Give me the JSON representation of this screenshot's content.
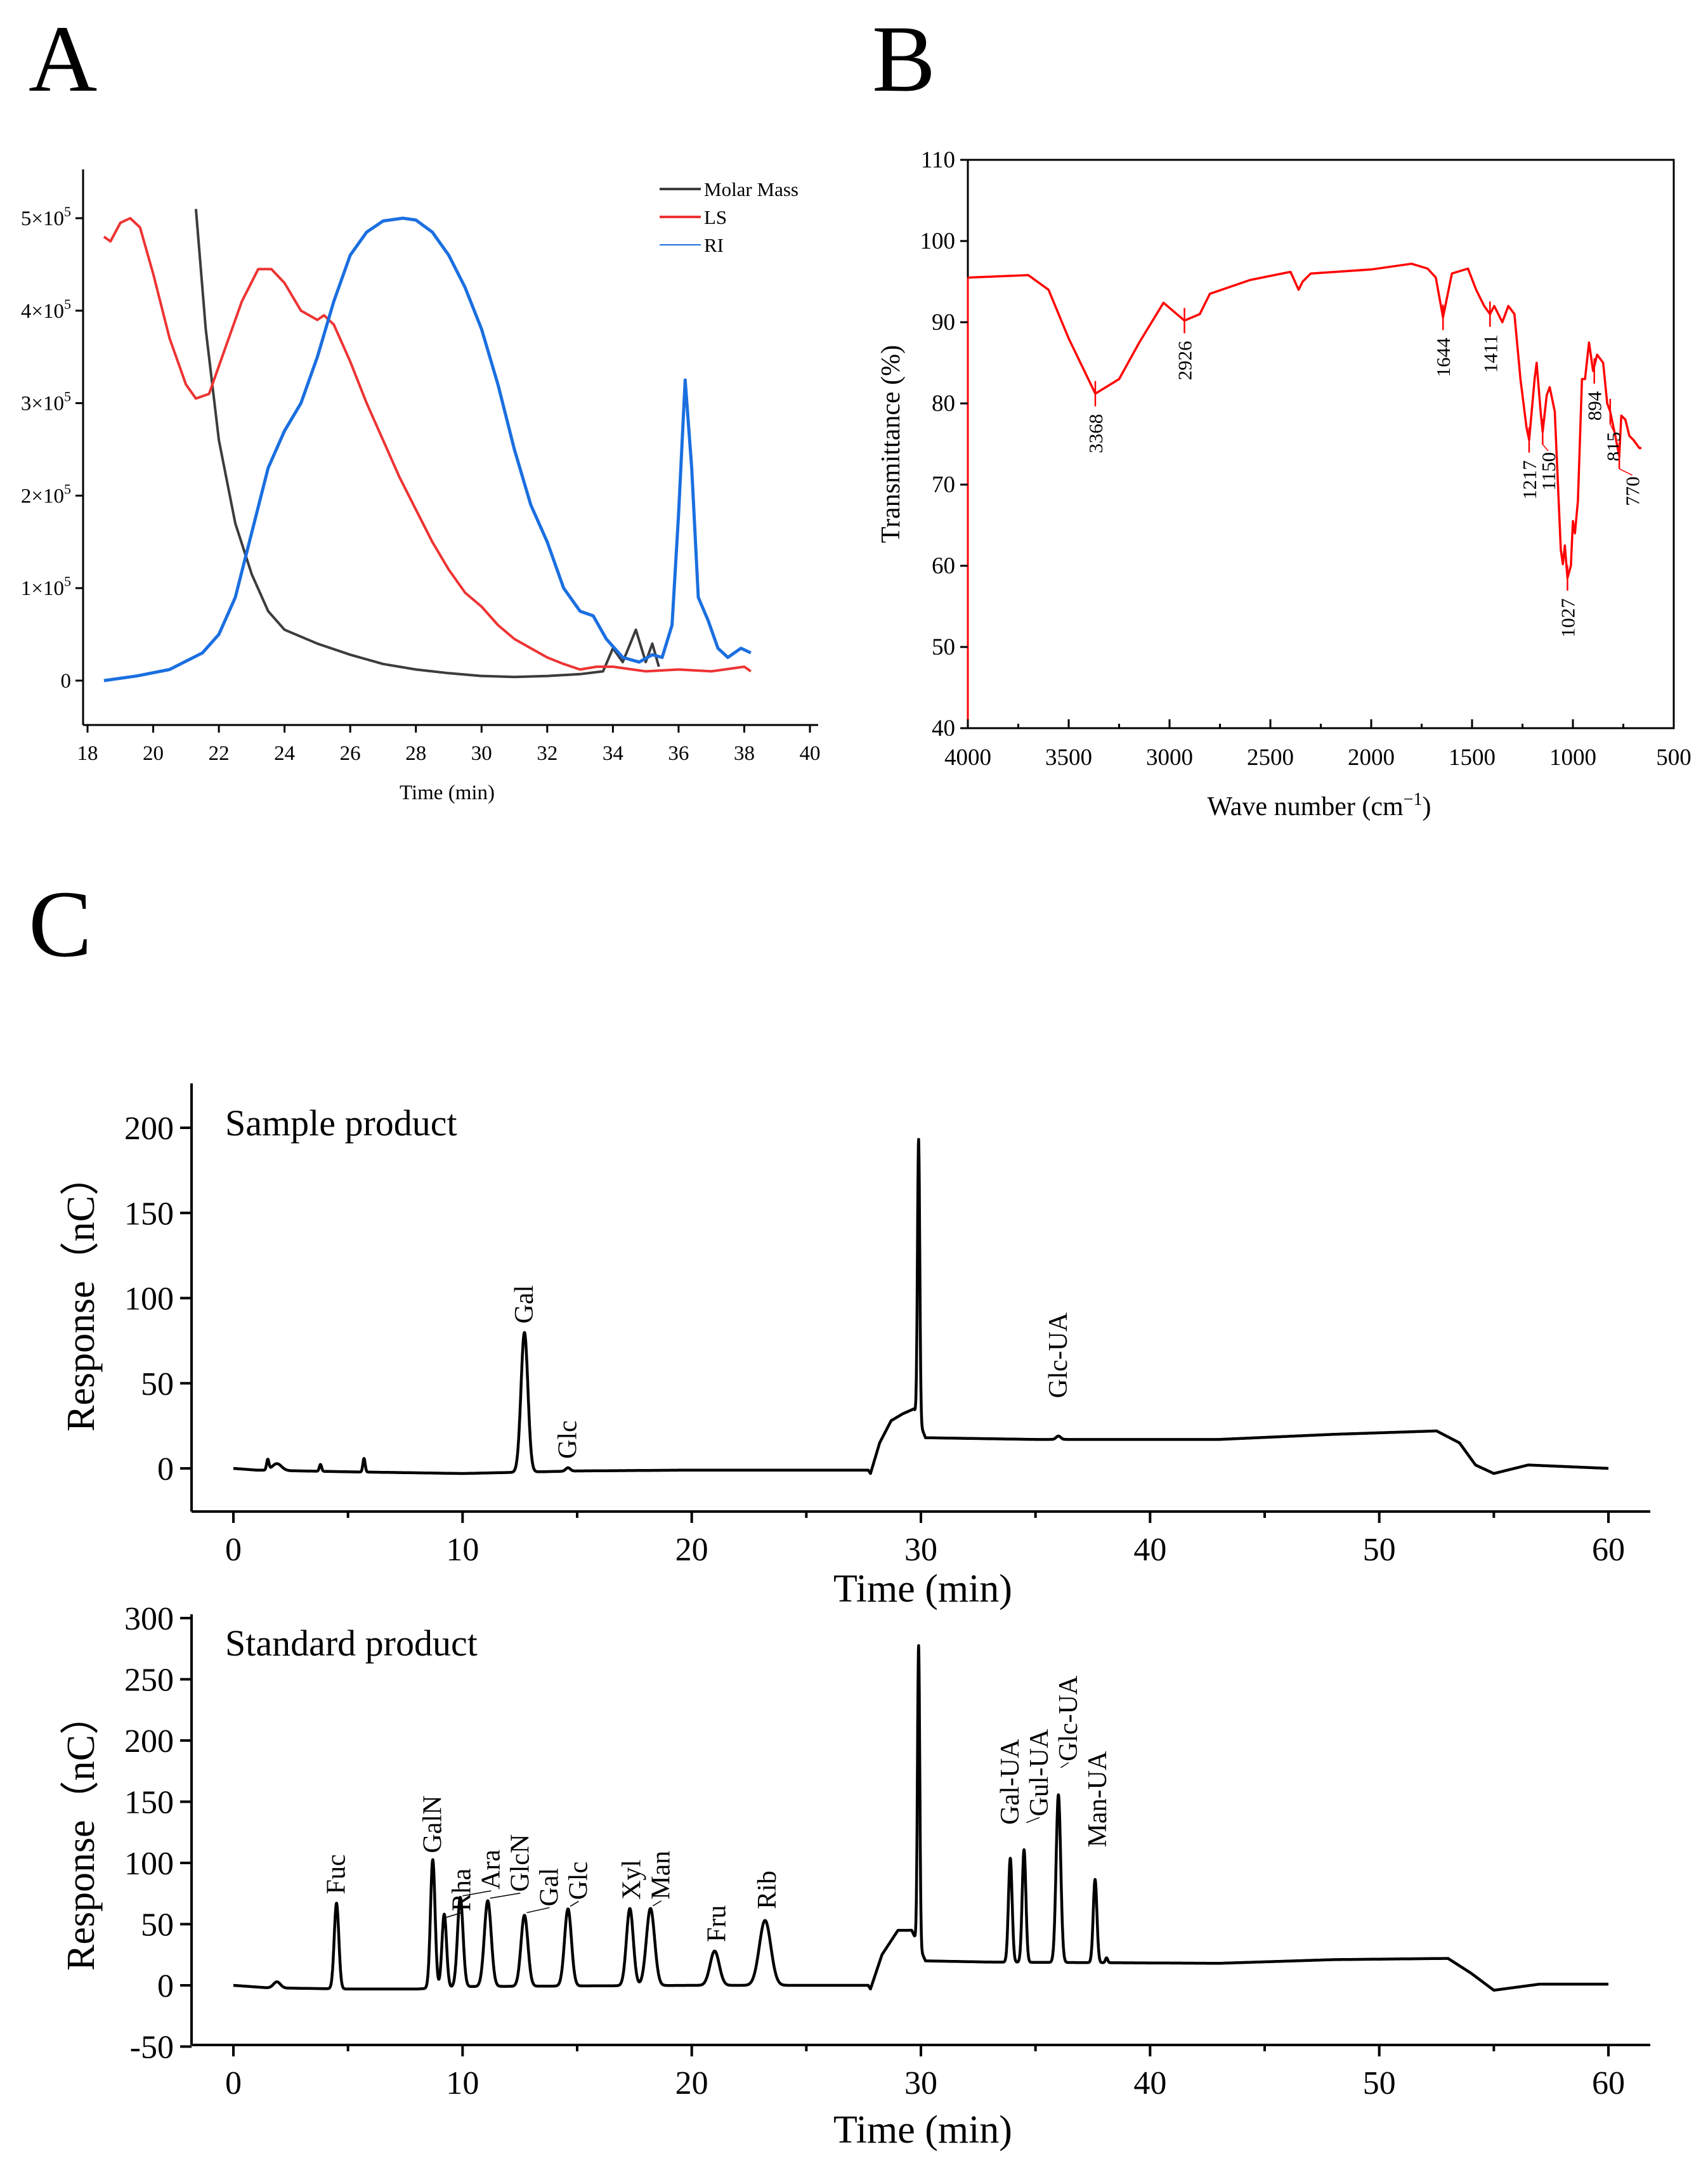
{
  "chart_data": [
    {
      "panel": "A",
      "type": "line",
      "xlabel": "Time (min)",
      "ylabel": "",
      "xlim": [
        18,
        40
      ],
      "ylim": [
        -0.5,
        5.5
      ],
      "y_scale_note": "values in units of 10^5",
      "xticks": [
        18,
        20,
        22,
        24,
        26,
        28,
        30,
        32,
        34,
        36,
        38,
        40
      ],
      "yticks": [
        {
          "v": 0,
          "m": "0",
          "e": ""
        },
        {
          "v": 1,
          "m": "1×10",
          "e": "5"
        },
        {
          "v": 2,
          "m": "2×10",
          "e": "5"
        },
        {
          "v": 3,
          "m": "3×10",
          "e": "5"
        },
        {
          "v": 4,
          "m": "4×10",
          "e": "5"
        },
        {
          "v": 5,
          "m": "5×10",
          "e": "5"
        }
      ],
      "legend_position": "top-right",
      "series": [
        {
          "name": "Molar Mass",
          "color": "#3c3c3c",
          "points": [
            [
              21.3,
              5.1
            ],
            [
              21.6,
              3.8
            ],
            [
              22,
              2.6
            ],
            [
              22.5,
              1.7
            ],
            [
              23,
              1.15
            ],
            [
              23.5,
              0.75
            ],
            [
              24,
              0.55
            ],
            [
              25,
              0.4
            ],
            [
              26,
              0.28
            ],
            [
              27,
              0.18
            ],
            [
              28,
              0.12
            ],
            [
              29,
              0.08
            ],
            [
              30,
              0.05
            ],
            [
              31,
              0.04
            ],
            [
              32,
              0.05
            ],
            [
              33,
              0.07
            ],
            [
              33.7,
              0.1
            ],
            [
              34,
              0.35
            ],
            [
              34.3,
              0.2
            ],
            [
              34.7,
              0.55
            ],
            [
              35,
              0.2
            ],
            [
              35.2,
              0.4
            ],
            [
              35.4,
              0.15
            ]
          ]
        },
        {
          "name": "LS",
          "color": "#ee3333",
          "points": [
            [
              18.5,
              4.8
            ],
            [
              18.7,
              4.75
            ],
            [
              19,
              4.95
            ],
            [
              19.3,
              5.0
            ],
            [
              19.6,
              4.9
            ],
            [
              20,
              4.4
            ],
            [
              20.5,
              3.7
            ],
            [
              21,
              3.2
            ],
            [
              21.3,
              3.05
            ],
            [
              21.7,
              3.1
            ],
            [
              22.2,
              3.6
            ],
            [
              22.7,
              4.1
            ],
            [
              23.2,
              4.45
            ],
            [
              23.6,
              4.45
            ],
            [
              24,
              4.3
            ],
            [
              24.5,
              4.0
            ],
            [
              25,
              3.9
            ],
            [
              25.2,
              3.95
            ],
            [
              25.5,
              3.85
            ],
            [
              26,
              3.45
            ],
            [
              26.5,
              3.0
            ],
            [
              27,
              2.6
            ],
            [
              27.5,
              2.2
            ],
            [
              28,
              1.85
            ],
            [
              28.5,
              1.5
            ],
            [
              29,
              1.2
            ],
            [
              29.5,
              0.95
            ],
            [
              30,
              0.8
            ],
            [
              30.5,
              0.6
            ],
            [
              31,
              0.45
            ],
            [
              31.5,
              0.35
            ],
            [
              32,
              0.25
            ],
            [
              32.5,
              0.18
            ],
            [
              33,
              0.12
            ],
            [
              33.5,
              0.15
            ],
            [
              34,
              0.15
            ],
            [
              35,
              0.1
            ],
            [
              36,
              0.12
            ],
            [
              37,
              0.1
            ],
            [
              38,
              0.15
            ],
            [
              38.2,
              0.1
            ]
          ]
        },
        {
          "name": "RI",
          "color": "#1a6fe0",
          "points": [
            [
              18.5,
              0
            ],
            [
              19.5,
              0.05
            ],
            [
              20.5,
              0.12
            ],
            [
              21.5,
              0.3
            ],
            [
              22,
              0.5
            ],
            [
              22.5,
              0.9
            ],
            [
              23,
              1.6
            ],
            [
              23.5,
              2.3
            ],
            [
              24,
              2.7
            ],
            [
              24.5,
              3.0
            ],
            [
              25,
              3.5
            ],
            [
              25.5,
              4.1
            ],
            [
              26,
              4.6
            ],
            [
              26.5,
              4.85
            ],
            [
              27,
              4.97
            ],
            [
              27.6,
              5.0
            ],
            [
              28,
              4.98
            ],
            [
              28.5,
              4.85
            ],
            [
              29,
              4.6
            ],
            [
              29.5,
              4.25
            ],
            [
              30,
              3.8
            ],
            [
              30.5,
              3.2
            ],
            [
              31,
              2.5
            ],
            [
              31.5,
              1.9
            ],
            [
              32,
              1.5
            ],
            [
              32.5,
              1.0
            ],
            [
              33,
              0.75
            ],
            [
              33.4,
              0.7
            ],
            [
              33.8,
              0.45
            ],
            [
              34.3,
              0.25
            ],
            [
              34.8,
              0.2
            ],
            [
              35.2,
              0.28
            ],
            [
              35.5,
              0.25
            ],
            [
              35.8,
              0.6
            ],
            [
              36,
              1.8
            ],
            [
              36.2,
              3.25
            ],
            [
              36.4,
              2.3
            ],
            [
              36.6,
              0.9
            ],
            [
              36.9,
              0.65
            ],
            [
              37.2,
              0.35
            ],
            [
              37.5,
              0.25
            ],
            [
              37.9,
              0.35
            ],
            [
              38.2,
              0.3
            ]
          ]
        }
      ]
    },
    {
      "panel": "B",
      "type": "line",
      "xlabel": "Wave number (cm",
      "xlabel_sup": "−1",
      "xlabel_end": ")",
      "ylabel": "Transmittance (%)",
      "xlim": [
        4000,
        500
      ],
      "ylim": [
        40,
        110
      ],
      "xticks": [
        4000,
        3500,
        3000,
        2500,
        2000,
        1500,
        1000,
        500
      ],
      "yticks": [
        40,
        50,
        60,
        70,
        80,
        90,
        100,
        110
      ],
      "color": "#ff0000",
      "points": [
        [
          4000,
          95.5
        ],
        [
          3700,
          95.8
        ],
        [
          3600,
          94
        ],
        [
          3500,
          88
        ],
        [
          3368,
          81.2
        ],
        [
          3250,
          83
        ],
        [
          3150,
          87.5
        ],
        [
          3030,
          92.4
        ],
        [
          2926,
          90.2
        ],
        [
          2850,
          91
        ],
        [
          2800,
          93.5
        ],
        [
          2600,
          95.2
        ],
        [
          2400,
          96.2
        ],
        [
          2360,
          94
        ],
        [
          2340,
          95
        ],
        [
          2300,
          96
        ],
        [
          2000,
          96.5
        ],
        [
          1800,
          97.2
        ],
        [
          1720,
          96.6
        ],
        [
          1680,
          95.5
        ],
        [
          1644,
          90.6
        ],
        [
          1600,
          96
        ],
        [
          1520,
          96.6
        ],
        [
          1480,
          94
        ],
        [
          1440,
          92
        ],
        [
          1411,
          91
        ],
        [
          1390,
          92
        ],
        [
          1350,
          90
        ],
        [
          1320,
          92
        ],
        [
          1290,
          91
        ],
        [
          1260,
          83
        ],
        [
          1230,
          77
        ],
        [
          1217,
          75.5
        ],
        [
          1190,
          83
        ],
        [
          1180,
          85
        ],
        [
          1160,
          79
        ],
        [
          1150,
          76.5
        ],
        [
          1130,
          81
        ],
        [
          1115,
          82
        ],
        [
          1090,
          79
        ],
        [
          1060,
          62
        ],
        [
          1050,
          60.2
        ],
        [
          1040,
          62.5
        ],
        [
          1027,
          58.5
        ],
        [
          1010,
          60
        ],
        [
          1000,
          65.5
        ],
        [
          990,
          64
        ],
        [
          975,
          68
        ],
        [
          955,
          83
        ],
        [
          940,
          83
        ],
        [
          920,
          87.5
        ],
        [
          900,
          84
        ],
        [
          880,
          86
        ],
        [
          850,
          85
        ],
        [
          830,
          80
        ],
        [
          815,
          79
        ],
        [
          790,
          76
        ],
        [
          770,
          73.5
        ],
        [
          760,
          78.5
        ],
        [
          740,
          78
        ],
        [
          720,
          76
        ],
        [
          700,
          75.5
        ],
        [
          670,
          74.5
        ],
        [
          660,
          74.5
        ]
      ],
      "annotations": [
        {
          "label": "3368",
          "x": 3368,
          "y": 81.2,
          "side": "below"
        },
        {
          "label": "2926",
          "x": 2926,
          "y": 90.2,
          "side": "below"
        },
        {
          "label": "1644",
          "x": 1644,
          "y": 90.6,
          "side": "below"
        },
        {
          "label": "1411",
          "x": 1411,
          "y": 91,
          "side": "below"
        },
        {
          "label": "1217",
          "x": 1217,
          "y": 75.5,
          "side": "below"
        },
        {
          "label": "1150",
          "x": 1150,
          "y": 76.5,
          "side": "below"
        },
        {
          "label": "1027",
          "x": 1027,
          "y": 58.5,
          "side": "below"
        },
        {
          "label": "894",
          "x": 894,
          "y": 84,
          "side": "below"
        },
        {
          "label": "815",
          "x": 815,
          "y": 79,
          "side": "below"
        },
        {
          "label": "770",
          "x": 770,
          "y": 73.5,
          "side": "below"
        }
      ]
    },
    {
      "panel": "C-top",
      "type": "line",
      "title": "Sample product",
      "xlabel": "Time (min)",
      "ylabel": "Response（nC）",
      "xlim": [
        -2,
        62
      ],
      "ylim": [
        -25,
        225
      ],
      "xticks": [
        0,
        10,
        20,
        30,
        40,
        50,
        60
      ],
      "yticks": [
        0,
        50,
        100,
        150,
        200
      ],
      "color": "#000000",
      "baseline": [
        [
          0,
          0
        ],
        [
          1,
          -1
        ],
        [
          5,
          -2
        ],
        [
          10,
          -3
        ],
        [
          15,
          -1.5
        ],
        [
          20,
          -1
        ],
        [
          27.7,
          -1
        ],
        [
          27.8,
          -3
        ],
        [
          28.2,
          15
        ],
        [
          28.7,
          28
        ],
        [
          29.2,
          32
        ],
        [
          29.7,
          35
        ],
        [
          30.2,
          18
        ],
        [
          35,
          17
        ],
        [
          43,
          17
        ],
        [
          48,
          20
        ],
        [
          52.5,
          22
        ],
        [
          53.5,
          15
        ],
        [
          54.2,
          2
        ],
        [
          55,
          -3
        ],
        [
          56.5,
          2
        ],
        [
          60,
          0
        ]
      ],
      "peaks": [
        [
          1.5,
          6,
          0.05
        ],
        [
          1.9,
          4,
          0.2
        ],
        [
          3.8,
          4,
          0.05
        ],
        [
          5.7,
          8,
          0.05
        ],
        [
          12.7,
          82,
          0.15
        ],
        [
          14.6,
          2,
          0.1
        ],
        [
          29.9,
          165,
          0.05
        ],
        [
          36,
          2,
          0.1
        ]
      ],
      "peak_labels": [
        {
          "label": "Gal",
          "x": 12.7,
          "y": 82
        },
        {
          "label": "Glc",
          "x": 14.6,
          "y": 2
        },
        {
          "label": "Glc-UA",
          "x": 36,
          "y": 19
        }
      ]
    },
    {
      "panel": "C-bottom",
      "type": "line",
      "title": "Standard product",
      "xlabel": "Time (min)",
      "ylabel": "Response（nC）",
      "xlim": [
        -2,
        62
      ],
      "ylim": [
        -50,
        300
      ],
      "xticks": [
        0,
        10,
        20,
        30,
        40,
        50,
        60
      ],
      "yticks": [
        -50,
        0,
        50,
        100,
        150,
        200,
        250,
        300
      ],
      "color": "#000000",
      "baseline": [
        [
          0,
          0
        ],
        [
          1.5,
          -2
        ],
        [
          5,
          -3
        ],
        [
          8,
          -3
        ],
        [
          10,
          -1
        ],
        [
          20,
          0
        ],
        [
          27.7,
          0
        ],
        [
          27.8,
          -3
        ],
        [
          28.3,
          25
        ],
        [
          29,
          45
        ],
        [
          29.6,
          45
        ],
        [
          30.2,
          20
        ],
        [
          33,
          19
        ],
        [
          43,
          18
        ],
        [
          48,
          21
        ],
        [
          53,
          22
        ],
        [
          54,
          10
        ],
        [
          55,
          -4
        ],
        [
          57,
          1
        ],
        [
          60,
          1
        ]
      ],
      "peaks": [
        [
          1.9,
          5,
          0.15
        ],
        [
          4.5,
          70,
          0.1
        ],
        [
          8.7,
          105,
          0.1
        ],
        [
          9.2,
          60,
          0.1
        ],
        [
          9.9,
          73,
          0.12
        ],
        [
          11.1,
          70,
          0.15
        ],
        [
          12.7,
          58,
          0.15
        ],
        [
          14.6,
          63,
          0.15
        ],
        [
          17.3,
          63,
          0.15
        ],
        [
          18.2,
          63,
          0.18
        ],
        [
          21,
          28,
          0.2
        ],
        [
          23.2,
          53,
          0.25
        ],
        [
          29.9,
          245,
          0.05
        ],
        [
          33.9,
          85,
          0.08
        ],
        [
          34.5,
          92,
          0.08
        ],
        [
          36,
          137,
          0.1
        ],
        [
          37.6,
          68,
          0.08
        ],
        [
          38.1,
          4,
          0.05
        ]
      ],
      "peak_labels": [
        {
          "label": "Fuc",
          "x": 4.5,
          "y": 70
        },
        {
          "label": "GalN",
          "x": 8.7,
          "y": 103
        },
        {
          "label": "Rha",
          "x": 9.25,
          "y": 55
        },
        {
          "label": "Ara",
          "x": 10.0,
          "y": 72
        },
        {
          "label": "GlcN",
          "x": 11.2,
          "y": 70
        },
        {
          "label": "Gal",
          "x": 12.8,
          "y": 58
        },
        {
          "label": "Glc",
          "x": 14.7,
          "y": 63
        },
        {
          "label": "Xyl",
          "x": 17.4,
          "y": 63
        },
        {
          "label": "Man",
          "x": 18.3,
          "y": 63
        },
        {
          "label": "Fru",
          "x": 21.1,
          "y": 28
        },
        {
          "label": "Rib",
          "x": 23.3,
          "y": 55
        },
        {
          "label": "Gal-UA",
          "x": 33.9,
          "y": 105
        },
        {
          "label": "Gul-UA",
          "x": 34.6,
          "y": 112
        },
        {
          "label": "Glc-UA",
          "x": 36.1,
          "y": 157
        },
        {
          "label": "Man-UA",
          "x": 37.7,
          "y": 87
        }
      ]
    }
  ],
  "panel_letters": [
    "A",
    "B",
    "C"
  ]
}
